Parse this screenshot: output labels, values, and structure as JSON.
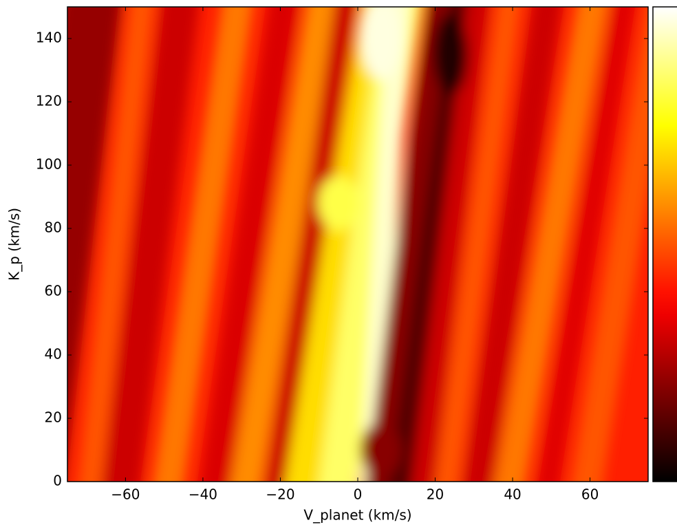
{
  "chart_data": {
    "type": "heatmap",
    "colormap": "hot",
    "xlabel": "V_planet (km/s)",
    "ylabel": "K_p (km/s)",
    "xlim": [
      -75,
      75
    ],
    "ylim": [
      0,
      150
    ],
    "xticks": [
      {
        "value": -60,
        "label": "−60"
      },
      {
        "value": -40,
        "label": "−40"
      },
      {
        "value": -20,
        "label": "−20"
      },
      0,
      20,
      40,
      60
    ],
    "yticks": [
      0,
      20,
      40,
      60,
      80,
      100,
      120,
      140
    ],
    "colorbar": true
  }
}
